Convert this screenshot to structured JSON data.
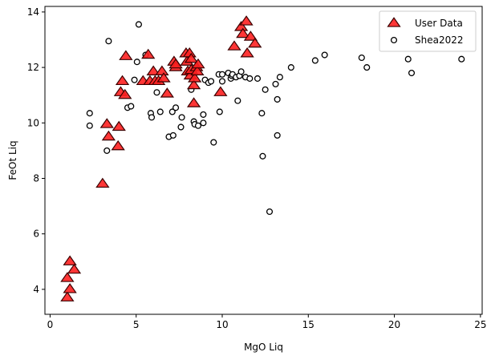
{
  "chart_data": {
    "type": "scatter",
    "xlabel": "MgO Liq",
    "ylabel": "FeOt Liq",
    "xlim": [
      -0.3,
      25.1
    ],
    "ylim": [
      3.1,
      14.2
    ],
    "xticks": [
      0,
      5,
      10,
      15,
      20,
      25
    ],
    "yticks": [
      4,
      6,
      8,
      10,
      12,
      14
    ],
    "grid": false,
    "legend_position": "upper right",
    "series": [
      {
        "name": "User Data",
        "marker": "triangle",
        "color": "#ff2020",
        "edge_color": "#3a0000",
        "points": [
          [
            1.0,
            3.7
          ],
          [
            1.0,
            4.4
          ],
          [
            1.15,
            4.0
          ],
          [
            1.15,
            5.0
          ],
          [
            1.4,
            4.7
          ],
          [
            3.05,
            7.8
          ],
          [
            3.3,
            9.95
          ],
          [
            3.4,
            9.5
          ],
          [
            3.95,
            9.15
          ],
          [
            4.0,
            9.85
          ],
          [
            4.1,
            11.1
          ],
          [
            4.2,
            11.5
          ],
          [
            4.35,
            11.0
          ],
          [
            4.4,
            12.4
          ],
          [
            5.4,
            11.5
          ],
          [
            5.7,
            12.45
          ],
          [
            5.8,
            11.5
          ],
          [
            6.0,
            11.85
          ],
          [
            6.1,
            11.5
          ],
          [
            6.3,
            11.5
          ],
          [
            6.5,
            11.85
          ],
          [
            6.6,
            11.6
          ],
          [
            6.8,
            11.05
          ],
          [
            7.2,
            12.2
          ],
          [
            7.3,
            12.0
          ],
          [
            7.3,
            12.1
          ],
          [
            7.9,
            12.5
          ],
          [
            7.95,
            12.2
          ],
          [
            8.0,
            11.85
          ],
          [
            8.1,
            12.5
          ],
          [
            8.15,
            11.7
          ],
          [
            8.2,
            12.3
          ],
          [
            8.2,
            11.9
          ],
          [
            8.35,
            10.7
          ],
          [
            8.35,
            11.35
          ],
          [
            8.4,
            11.6
          ],
          [
            8.5,
            12.0
          ],
          [
            8.55,
            11.85
          ],
          [
            8.6,
            12.1
          ],
          [
            9.9,
            11.1
          ],
          [
            10.7,
            12.75
          ],
          [
            11.1,
            13.45
          ],
          [
            11.2,
            13.2
          ],
          [
            11.4,
            13.65
          ],
          [
            11.45,
            12.5
          ],
          [
            11.65,
            13.1
          ],
          [
            11.9,
            12.85
          ]
        ]
      },
      {
        "name": "Shea2022",
        "marker": "circle",
        "color": "#ffffff",
        "edge_color": "#000000",
        "points": [
          [
            2.3,
            10.35
          ],
          [
            2.3,
            9.9
          ],
          [
            3.3,
            9.0
          ],
          [
            3.4,
            12.95
          ],
          [
            4.5,
            10.55
          ],
          [
            4.7,
            10.6
          ],
          [
            4.9,
            11.55
          ],
          [
            5.05,
            12.2
          ],
          [
            5.15,
            13.55
          ],
          [
            5.55,
            12.45
          ],
          [
            5.85,
            10.35
          ],
          [
            5.9,
            10.2
          ],
          [
            6.2,
            11.1
          ],
          [
            6.4,
            10.4
          ],
          [
            6.9,
            9.5
          ],
          [
            7.1,
            10.4
          ],
          [
            7.15,
            9.55
          ],
          [
            7.3,
            10.55
          ],
          [
            7.6,
            9.85
          ],
          [
            7.65,
            10.2
          ],
          [
            8.2,
            11.2
          ],
          [
            8.35,
            10.05
          ],
          [
            8.4,
            9.95
          ],
          [
            8.6,
            9.9
          ],
          [
            8.9,
            10.3
          ],
          [
            8.9,
            10.0
          ],
          [
            9.0,
            11.55
          ],
          [
            9.2,
            11.45
          ],
          [
            9.35,
            11.5
          ],
          [
            9.5,
            9.3
          ],
          [
            9.8,
            11.75
          ],
          [
            9.85,
            10.4
          ],
          [
            10.0,
            11.5
          ],
          [
            10.0,
            11.75
          ],
          [
            10.35,
            11.8
          ],
          [
            10.5,
            11.6
          ],
          [
            10.55,
            11.7
          ],
          [
            10.6,
            11.75
          ],
          [
            10.8,
            11.65
          ],
          [
            10.9,
            10.8
          ],
          [
            11.0,
            11.7
          ],
          [
            11.1,
            11.85
          ],
          [
            11.35,
            11.65
          ],
          [
            11.6,
            11.6
          ],
          [
            12.05,
            11.6
          ],
          [
            12.3,
            10.35
          ],
          [
            12.35,
            8.8
          ],
          [
            12.5,
            11.2
          ],
          [
            12.75,
            6.8
          ],
          [
            13.1,
            11.4
          ],
          [
            13.2,
            9.55
          ],
          [
            13.2,
            10.85
          ],
          [
            13.35,
            11.65
          ],
          [
            14.0,
            12.0
          ],
          [
            15.4,
            12.25
          ],
          [
            15.95,
            12.45
          ],
          [
            18.1,
            12.35
          ],
          [
            18.4,
            12.0
          ],
          [
            20.8,
            12.3
          ],
          [
            21.0,
            11.8
          ],
          [
            23.9,
            12.3
          ]
        ]
      }
    ]
  }
}
